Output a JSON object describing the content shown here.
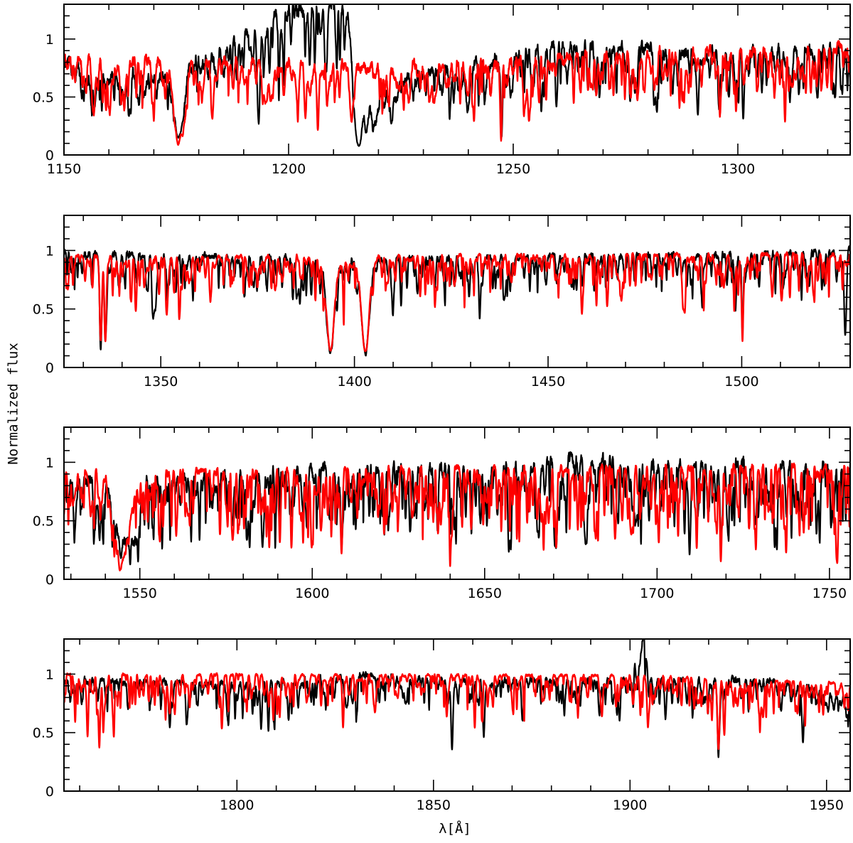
{
  "figure": {
    "ylabel": "Normalized flux",
    "xlabel": "λ[Å]"
  },
  "chart_data": [
    {
      "type": "line",
      "xlim": [
        1150,
        1325
      ],
      "ylim": [
        0,
        1.3
      ],
      "xticks": [
        1150,
        1200,
        1250,
        1300
      ],
      "yticks": [
        0,
        0.5,
        1
      ],
      "xminor": 10,
      "yminor": 0.1,
      "series": [
        {
          "color": "#000000",
          "seed": 11,
          "continuum": [
            [
              1150,
              0.82
            ],
            [
              1170,
              0.68
            ],
            [
              1185,
              0.9
            ],
            [
              1195,
              1.2
            ],
            [
              1205,
              1.35
            ],
            [
              1213,
              1.3
            ],
            [
              1216,
              0.45
            ],
            [
              1225,
              0.65
            ],
            [
              1245,
              0.82
            ],
            [
              1260,
              0.95
            ],
            [
              1290,
              0.9
            ],
            [
              1325,
              0.92
            ]
          ],
          "noise": 0.1,
          "density": 2.5,
          "depth": 0.35,
          "features": [
            [
              1175.5,
              0.8,
              1.5
            ],
            [
              1193.3,
              0.7,
              0.5
            ],
            [
              1215.5,
              0.85,
              1.2
            ],
            [
              1219,
              0.5,
              1
            ],
            [
              1247.4,
              0.8,
              0.3
            ],
            [
              1259.6,
              0.55,
              0.3
            ],
            [
              1277.5,
              0.4,
              0.3
            ],
            [
              1295.8,
              0.55,
              0.3
            ],
            [
              1301.2,
              0.65,
              0.3
            ]
          ]
        },
        {
          "color": "#ff0000",
          "seed": 23,
          "continuum": [
            [
              1150,
              0.82
            ],
            [
              1170,
              0.82
            ],
            [
              1200,
              0.8
            ],
            [
              1216,
              0.78
            ],
            [
              1225,
              0.78
            ],
            [
              1245,
              0.8
            ],
            [
              1265,
              0.88
            ],
            [
              1300,
              0.92
            ],
            [
              1325,
              0.95
            ]
          ],
          "noise": 0.08,
          "density": 3,
          "depth": 0.35,
          "features": [
            [
              1175.5,
              0.85,
              1.5
            ],
            [
              1183,
              0.6,
              0.4
            ],
            [
              1206.5,
              0.7,
              0.3
            ],
            [
              1214,
              0.6,
              0.6
            ],
            [
              1247.3,
              0.85,
              0.3
            ],
            [
              1288,
              0.5,
              0.3
            ],
            [
              1296,
              0.6,
              0.3
            ],
            [
              1299.6,
              0.6,
              0.3
            ]
          ]
        }
      ]
    },
    {
      "type": "line",
      "xlim": [
        1325,
        1528
      ],
      "ylim": [
        0,
        1.3
      ],
      "xticks": [
        1350,
        1400,
        1450,
        1500
      ],
      "yticks": [
        0,
        0.5,
        1
      ],
      "xminor": 10,
      "yminor": 0.1,
      "series": [
        {
          "color": "#000000",
          "seed": 31,
          "continuum": [
            [
              1325,
              0.98
            ],
            [
              1360,
              0.95
            ],
            [
              1400,
              0.93
            ],
            [
              1450,
              0.95
            ],
            [
              1500,
              0.97
            ],
            [
              1528,
              1.0
            ]
          ],
          "noise": 0.05,
          "density": 2.2,
          "depth": 0.25,
          "features": [
            [
              1334.5,
              0.8,
              0.4
            ],
            [
              1335.7,
              0.72,
              0.4
            ],
            [
              1393.8,
              0.85,
              1.4
            ],
            [
              1402.8,
              0.85,
              1.4
            ],
            [
              1526.7,
              0.7,
              0.4
            ],
            [
              1500.2,
              0.7,
              0.3
            ]
          ]
        },
        {
          "color": "#ff0000",
          "seed": 37,
          "continuum": [
            [
              1325,
              0.95
            ],
            [
              1400,
              0.95
            ],
            [
              1528,
              0.97
            ]
          ],
          "noise": 0.03,
          "density": 2.4,
          "depth": 0.25,
          "features": [
            [
              1334.5,
              0.75,
              0.4
            ],
            [
              1335.7,
              0.65,
              0.4
            ],
            [
              1393.8,
              0.85,
              1.4
            ],
            [
              1402.8,
              0.85,
              1.4
            ],
            [
              1500.2,
              0.75,
              0.3
            ],
            [
              1343.5,
              0.45,
              0.3
            ]
          ]
        }
      ]
    },
    {
      "type": "line",
      "xlim": [
        1528,
        1756
      ],
      "ylim": [
        0,
        1.3
      ],
      "xticks": [
        1550,
        1600,
        1650,
        1700,
        1750
      ],
      "yticks": [
        0,
        0.5,
        1
      ],
      "xminor": 10,
      "yminor": 0.1,
      "series": [
        {
          "color": "#000000",
          "seed": 41,
          "continuum": [
            [
              1528,
              0.85
            ],
            [
              1540,
              0.85
            ],
            [
              1544,
              0.35
            ],
            [
              1548,
              0.35
            ],
            [
              1552,
              0.85
            ],
            [
              1600,
              0.95
            ],
            [
              1650,
              0.98
            ],
            [
              1680,
              1.05
            ],
            [
              1700,
              1.0
            ],
            [
              1756,
              0.98
            ]
          ],
          "noise": 0.08,
          "density": 3.2,
          "depth": 0.45,
          "features": [
            [
              1608.5,
              0.7,
              0.4
            ],
            [
              1657,
              0.75,
              0.4
            ],
            [
              1670.8,
              0.65,
              0.4
            ],
            [
              1718.5,
              0.65,
              0.4
            ]
          ]
        },
        {
          "color": "#ff0000",
          "seed": 43,
          "continuum": [
            [
              1528,
              0.92
            ],
            [
              1540,
              0.92
            ],
            [
              1543,
              0.35
            ],
            [
              1546,
              0.35
            ],
            [
              1550,
              0.92
            ],
            [
              1600,
              0.95
            ],
            [
              1660,
              0.97
            ],
            [
              1756,
              0.97
            ]
          ],
          "noise": 0.04,
          "density": 3.4,
          "depth": 0.45,
          "features": [
            [
              1545,
              0.5,
              1.2
            ],
            [
              1608.5,
              0.75,
              0.4
            ],
            [
              1640,
              0.7,
              0.4
            ],
            [
              1718.5,
              0.75,
              0.4
            ],
            [
              1752,
              0.6,
              0.3
            ]
          ]
        }
      ]
    },
    {
      "type": "line",
      "xlim": [
        1756,
        1956
      ],
      "ylim": [
        0,
        1.3
      ],
      "xticks": [
        1800,
        1850,
        1900,
        1950
      ],
      "yticks": [
        0,
        0.5,
        1
      ],
      "xminor": 10,
      "yminor": 0.1,
      "series": [
        {
          "color": "#000000",
          "seed": 53,
          "continuum": [
            [
              1756,
              0.95
            ],
            [
              1800,
              0.92
            ],
            [
              1835,
              1.0
            ],
            [
              1850,
              0.95
            ],
            [
              1900,
              0.95
            ],
            [
              1903.5,
              1.35
            ],
            [
              1905,
              0.95
            ],
            [
              1935,
              0.95
            ],
            [
              1956,
              0.8
            ]
          ],
          "noise": 0.05,
          "density": 2.0,
          "depth": 0.22,
          "features": [
            [
              1808,
              0.45,
              0.3
            ],
            [
              1854.7,
              0.55,
              0.3
            ],
            [
              1862.8,
              0.45,
              0.3
            ],
            [
              1922.5,
              0.6,
              0.4
            ]
          ]
        },
        {
          "color": "#ff0000",
          "seed": 59,
          "continuum": [
            [
              1756,
              1.0
            ],
            [
              1850,
              0.99
            ],
            [
              1900,
              0.99
            ],
            [
              1956,
              0.92
            ]
          ],
          "noise": 0.02,
          "density": 2.3,
          "depth": 0.22,
          "features": [
            [
              1762,
              0.5,
              0.3
            ],
            [
              1765,
              0.5,
              0.3
            ],
            [
              1827,
              0.45,
              0.3
            ],
            [
              1860.5,
              0.45,
              0.3
            ],
            [
              1922.5,
              0.63,
              0.4
            ],
            [
              1924,
              0.5,
              0.3
            ]
          ]
        }
      ]
    }
  ]
}
